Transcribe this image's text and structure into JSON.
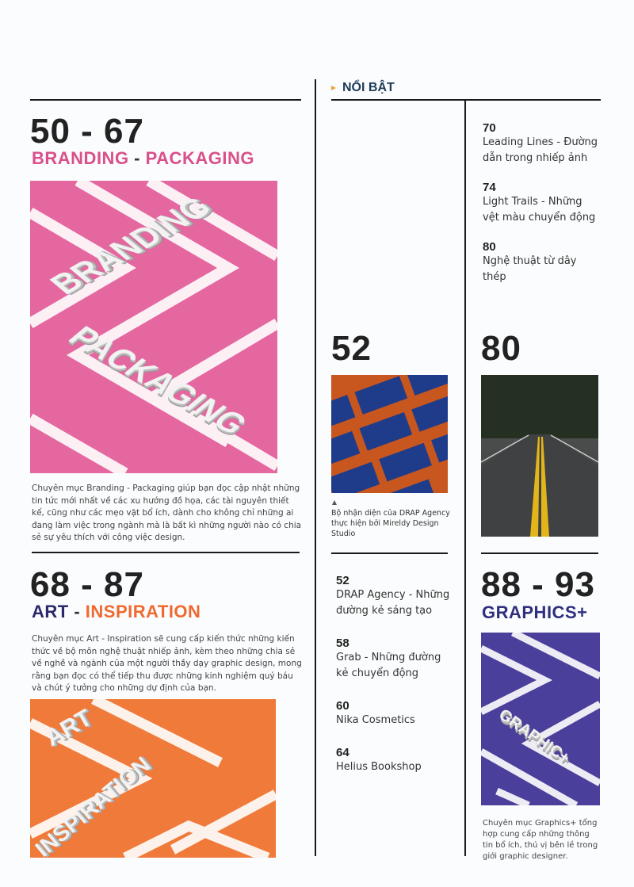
{
  "featured": {
    "label": "NỔI BẬT",
    "color": "#1f3a5a",
    "arrow_color": "#f0a030"
  },
  "branding": {
    "pages": "50 - 67",
    "title_a": "BRANDING",
    "sep": " - ",
    "title_b": "PACKAGING",
    "color": "#d9508b",
    "image_color": "#e5679f",
    "image_words": [
      "BRANDING",
      "PACKAGING"
    ],
    "description": "Chuyên mục Branding - Packaging giúp bạn đọc cập nhật những tin tức mới nhất về các xu hướng đồ họa, các tài nguyên thiết kế, cũng như các mẹo vặt bổ ích, dành cho không chỉ những ai đang làm việc trong ngành mà là bất kì những người nào có chia sẻ sự yêu thích với công việc design."
  },
  "art": {
    "pages": "68 - 87",
    "title_a": "ART",
    "sep": " - ",
    "title_b": "INSPIRATION",
    "color_a": "#2b2a6b",
    "color_b": "#f06a30",
    "image_color": "#f07a3a",
    "image_words": [
      "ART",
      "INSPIRATION"
    ],
    "description": "Chuyên mục Art - Inspiration sẽ cung cấp kiến thức những kiến thức về bộ môn nghệ thuật nhiếp ảnh, kèm theo những chia sẻ về nghề và ngành của một người thầy dạy graphic design, mong rằng bạn đọc có thể tiếp thu được những kinh nghiệm quý báu và chút ý tưởng cho những dự định của bạn."
  },
  "middle": {
    "big": "52",
    "caption_icon": "triangle-up",
    "caption": "Bộ nhận diện của DRAP Agency thực hiện bởi Mireldy Design Studio",
    "items": [
      {
        "page": "52",
        "title": "DRAP Agency - Những đường kẻ sáng tạo"
      },
      {
        "page": "58",
        "title": "Grab - Những đường kẻ chuyển động"
      },
      {
        "page": "60",
        "title": "Nika Cosmetics"
      },
      {
        "page": "64",
        "title": "Helius Bookshop"
      }
    ]
  },
  "right": {
    "items": [
      {
        "page": "70",
        "title": "Leading Lines - Đường dẫn trong nhiếp ảnh"
      },
      {
        "page": "74",
        "title": "Light Trails - Những vệt màu chuyển động"
      },
      {
        "page": "80",
        "title": "Nghệ thuật từ dây thép"
      }
    ],
    "big": "80"
  },
  "graphics": {
    "pages": "88 - 93",
    "title": "GRAPHICS+",
    "color": "#2f2f80",
    "image_color": "#4a3f9a",
    "image_word": "GRAPHIC+",
    "description": "Chuyên mục Graphics+ tổng hợp cung cấp những thông tin bổ ích, thú vị bên lề trong giới graphic designer."
  }
}
